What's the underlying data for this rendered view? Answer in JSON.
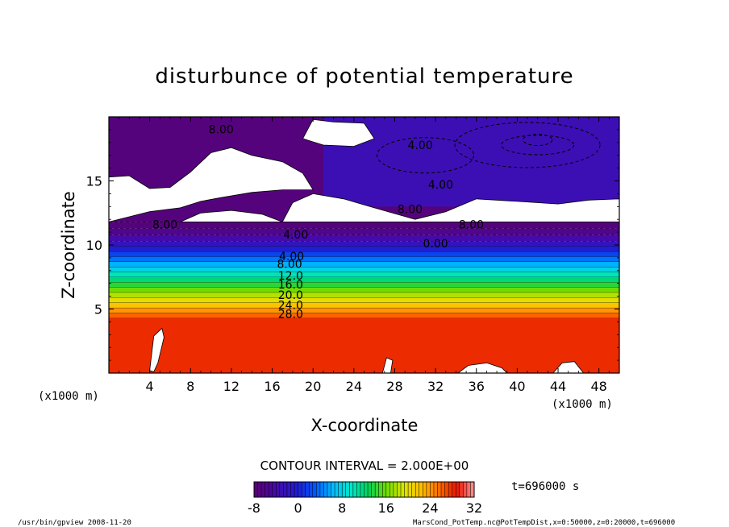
{
  "chart_data": {
    "type": "heatmap",
    "title": "disturbunce of potential temperature",
    "xlabel": "X-coordinate",
    "ylabel": "Z-coordinate",
    "x_unit": "(x1000 m)",
    "y_unit": "(x1000 m)",
    "xlim": [
      0,
      50
    ],
    "ylim": [
      0,
      20
    ],
    "x_ticks": [
      "4",
      "8",
      "12",
      "16",
      "20",
      "24",
      "28",
      "32",
      "36",
      "40",
      "44",
      "48"
    ],
    "x_tick_values": [
      4,
      8,
      12,
      16,
      20,
      24,
      28,
      32,
      36,
      40,
      44,
      48
    ],
    "y_ticks": [
      "5",
      "10",
      "15"
    ],
    "y_tick_values": [
      5,
      10,
      15
    ],
    "contour_interval_text": "CONTOUR INTERVAL = 2.000E+00",
    "time_text": "t=696000 s",
    "colorbar": {
      "min": -8,
      "max": 32,
      "tick_labels": [
        "-8",
        "0",
        "8",
        "16",
        "24",
        "32"
      ],
      "tick_values": [
        -8,
        0,
        8,
        16,
        24,
        32
      ]
    },
    "contour_labels": [
      {
        "text": "8.00",
        "x": 11.0,
        "y": 18.7
      },
      {
        "text": "4.00",
        "x": 30.5,
        "y": 17.5
      },
      {
        "text": "4.00",
        "x": 32.5,
        "y": 14.4
      },
      {
        "text": "8.00",
        "x": 29.5,
        "y": 12.5
      },
      {
        "text": "8.00",
        "x": 5.5,
        "y": 11.3
      },
      {
        "text": "8.00",
        "x": 35.5,
        "y": 11.3
      },
      {
        "text": "4.00",
        "x": 18.3,
        "y": 10.5
      },
      {
        "text": "0.00",
        "x": 32.0,
        "y": 9.8
      },
      {
        "text": "4.00",
        "x": 17.9,
        "y": 8.8
      },
      {
        "text": "8.00",
        "x": 17.7,
        "y": 8.2
      },
      {
        "text": "12.0",
        "x": 17.8,
        "y": 7.3
      },
      {
        "text": "16.0",
        "x": 17.8,
        "y": 6.6
      },
      {
        "text": "20.0",
        "x": 17.8,
        "y": 5.8
      },
      {
        "text": "24.0",
        "x": 17.8,
        "y": 5.0
      },
      {
        "text": "28.0",
        "x": 17.8,
        "y": 4.3
      }
    ],
    "layers": [
      {
        "z0": 0,
        "z1": 4.3,
        "value": 28
      },
      {
        "z0": 4.3,
        "z1": 4.7,
        "value": 26
      },
      {
        "z0": 4.7,
        "z1": 5.1,
        "value": 24
      },
      {
        "z0": 5.1,
        "z1": 5.5,
        "value": 22
      },
      {
        "z0": 5.5,
        "z1": 5.9,
        "value": 20
      },
      {
        "z0": 5.9,
        "z1": 6.3,
        "value": 18
      },
      {
        "z0": 6.3,
        "z1": 6.7,
        "value": 16
      },
      {
        "z0": 6.7,
        "z1": 7.1,
        "value": 14
      },
      {
        "z0": 7.1,
        "z1": 7.5,
        "value": 12
      },
      {
        "z0": 7.5,
        "z1": 7.9,
        "value": 10
      },
      {
        "z0": 7.9,
        "z1": 8.3,
        "value": 8
      },
      {
        "z0": 8.3,
        "z1": 8.7,
        "value": 6
      },
      {
        "z0": 8.7,
        "z1": 9.1,
        "value": 4
      },
      {
        "z0": 9.1,
        "z1": 9.5,
        "value": 2
      },
      {
        "z0": 9.5,
        "z1": 9.9,
        "value": 0
      },
      {
        "z0": 9.9,
        "z1": 10.3,
        "value": -2
      },
      {
        "z0": 10.3,
        "z1": 10.8,
        "value": -4
      },
      {
        "z0": 10.8,
        "z1": 11.3,
        "value": -6
      },
      {
        "z0": 11.3,
        "z1": 11.8,
        "value": -7
      }
    ],
    "upper_field_value": -7,
    "upper_right_field_value": -3,
    "footer_left": "/usr/bin/gpview   2008-11-20",
    "footer_right": "MarsCond_PotTemp.nc@PotTempDist,x=0:50000,z=0:20000,t=696000"
  }
}
